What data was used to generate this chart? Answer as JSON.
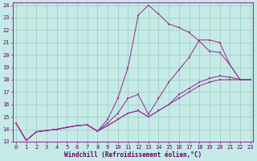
{
  "xlabel": "Windchill (Refroidissement éolien,°C)",
  "background_color": "#c5eae7",
  "grid_color": "#99ccbb",
  "line_color": "#993399",
  "spine_color": "#993399",
  "xlim": [
    -0.3,
    23.3
  ],
  "ylim": [
    13,
    24.2
  ],
  "xticks": [
    0,
    1,
    2,
    3,
    4,
    5,
    6,
    7,
    8,
    9,
    10,
    11,
    12,
    13,
    14,
    15,
    16,
    17,
    18,
    19,
    20,
    21,
    22,
    23
  ],
  "yticks": [
    13,
    14,
    15,
    16,
    17,
    18,
    19,
    20,
    21,
    22,
    23,
    24
  ],
  "line1_x": [
    0,
    1,
    2,
    3,
    4,
    5,
    6,
    7,
    8,
    9,
    10,
    11,
    12,
    13,
    14,
    15,
    16,
    17,
    18,
    19,
    20,
    21,
    22,
    23
  ],
  "line1_y": [
    14.5,
    13.1,
    13.8,
    13.9,
    14.0,
    14.15,
    14.3,
    14.35,
    13.85,
    14.8,
    16.5,
    19.0,
    23.2,
    24.0,
    23.3,
    22.5,
    22.2,
    21.8,
    21.1,
    20.3,
    20.2,
    19.2,
    18.0,
    18.0
  ],
  "line2_x": [
    0,
    1,
    2,
    3,
    4,
    5,
    6,
    7,
    8,
    9,
    10,
    11,
    12,
    13,
    14,
    15,
    16,
    17,
    18,
    19,
    20,
    21,
    22,
    23
  ],
  "line2_y": [
    14.5,
    13.1,
    13.8,
    13.9,
    14.0,
    14.15,
    14.3,
    14.35,
    13.85,
    14.5,
    15.3,
    16.5,
    16.8,
    15.2,
    16.5,
    17.8,
    18.8,
    19.8,
    21.2,
    21.2,
    21.0,
    19.2,
    18.0,
    18.0
  ],
  "line3_x": [
    0,
    1,
    2,
    3,
    4,
    5,
    6,
    7,
    8,
    9,
    10,
    11,
    12,
    13,
    14,
    15,
    16,
    17,
    18,
    19,
    20,
    21,
    22,
    23
  ],
  "line3_y": [
    14.5,
    13.1,
    13.8,
    13.9,
    14.0,
    14.15,
    14.3,
    14.35,
    13.85,
    14.3,
    14.8,
    15.3,
    15.5,
    15.0,
    15.5,
    16.0,
    16.8,
    17.3,
    17.8,
    18.1,
    18.3,
    18.2,
    18.0,
    18.0
  ],
  "line4_x": [
    0,
    1,
    2,
    3,
    4,
    5,
    6,
    7,
    8,
    9,
    10,
    11,
    12,
    13,
    14,
    15,
    16,
    17,
    18,
    19,
    20,
    21,
    22,
    23
  ],
  "line4_y": [
    14.5,
    13.1,
    13.8,
    13.9,
    14.0,
    14.15,
    14.3,
    14.35,
    13.85,
    14.3,
    14.8,
    15.3,
    15.5,
    15.0,
    15.5,
    16.0,
    16.5,
    17.0,
    17.5,
    17.8,
    18.0,
    18.0,
    18.0,
    18.0
  ],
  "tick_fontsize": 5.0,
  "xlabel_fontsize": 5.5
}
